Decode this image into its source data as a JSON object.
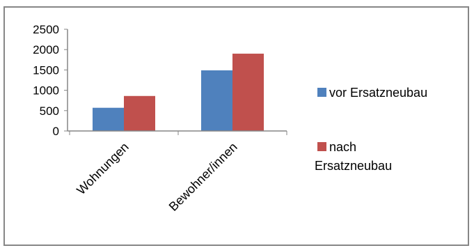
{
  "chart_data": {
    "type": "bar",
    "categories": [
      "Wohnungen",
      "Bewohner/innen"
    ],
    "series": [
      {
        "name": "vor Ersatzneubau",
        "values": [
          570,
          1490
        ],
        "color": "#4F81BD"
      },
      {
        "name": "nach Ersatzneubau",
        "values": [
          860,
          1900
        ],
        "color": "#C0504D"
      }
    ],
    "ylim": [
      0,
      2500
    ],
    "yticks": [
      0,
      500,
      1000,
      1500,
      2000,
      2500
    ],
    "grid": false,
    "legend": "right",
    "legend_labels": [
      [
        "vor Ersatzneubau"
      ],
      [
        "nach",
        "Ersatzneubau"
      ]
    ]
  }
}
